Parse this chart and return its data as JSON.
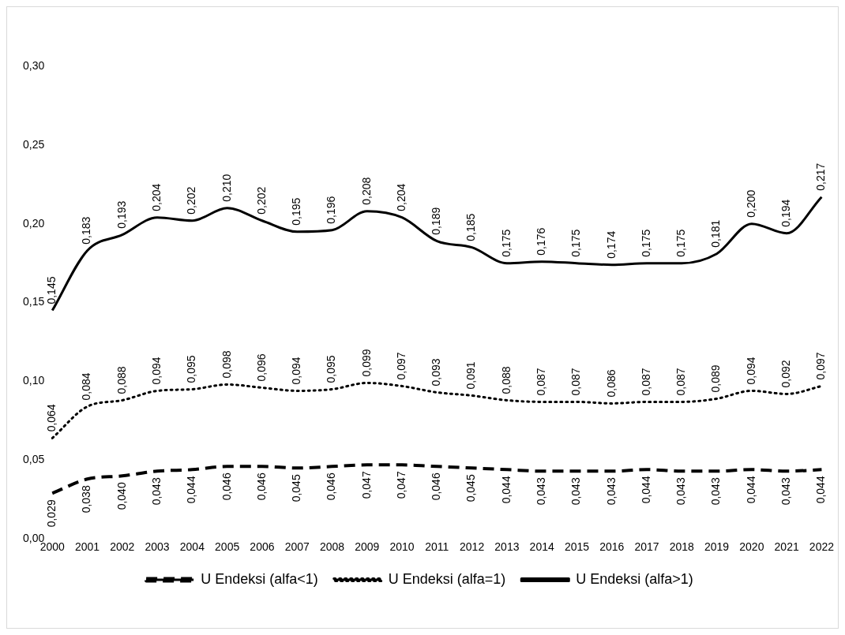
{
  "chart_data": {
    "type": "line",
    "categories": [
      "2000",
      "2001",
      "2002",
      "2003",
      "2004",
      "2005",
      "2006",
      "2007",
      "2008",
      "2009",
      "2010",
      "2011",
      "2012",
      "2013",
      "2014",
      "2015",
      "2016",
      "2017",
      "2018",
      "2019",
      "2020",
      "2021",
      "2022"
    ],
    "ylim": [
      0,
      0.3
    ],
    "yticks": [
      {
        "value": 0,
        "label": "0,00"
      },
      {
        "value": 0.05,
        "label": "0,05"
      },
      {
        "value": 0.1,
        "label": "0,10"
      },
      {
        "value": 0.15,
        "label": "0,15"
      },
      {
        "value": 0.2,
        "label": "0,20"
      },
      {
        "value": 0.25,
        "label": "0,25"
      },
      {
        "value": 0.3,
        "label": "0,30"
      }
    ],
    "grid": false,
    "legend": "bottom",
    "marker": "none",
    "series": [
      {
        "name": "U Endeksi (alfa<1)",
        "color": "#000000",
        "line_style": "dashed",
        "values": [
          0.029,
          0.038,
          0.04,
          0.043,
          0.044,
          0.046,
          0.046,
          0.045,
          0.046,
          0.047,
          0.047,
          0.046,
          0.045,
          0.044,
          0.043,
          0.043,
          0.043,
          0.044,
          0.043,
          0.043,
          0.044,
          0.043,
          0.044
        ],
        "value_labels": [
          "0,029",
          "0,038",
          "0,040",
          "0,043",
          "0,044",
          "0,046",
          "0,046",
          "0,045",
          "0,046",
          "0,047",
          "0,047",
          "0,046",
          "0,045",
          "0,044",
          "0,043",
          "0,043",
          "0,043",
          "0,044",
          "0,043",
          "0,043",
          "0,044",
          "0,043",
          "0,044"
        ]
      },
      {
        "name": "U Endeksi (alfa=1)",
        "color": "#000000",
        "line_style": "dotted",
        "values": [
          0.064,
          0.084,
          0.088,
          0.094,
          0.095,
          0.098,
          0.096,
          0.094,
          0.095,
          0.099,
          0.097,
          0.093,
          0.091,
          0.088,
          0.087,
          0.087,
          0.086,
          0.087,
          0.087,
          0.089,
          0.094,
          0.092,
          0.097
        ],
        "value_labels": [
          "0,064",
          "0,084",
          "0,088",
          "0,094",
          "0,095",
          "0,098",
          "0,096",
          "0,094",
          "0,095",
          "0,099",
          "0,097",
          "0,093",
          "0,091",
          "0,088",
          "0,087",
          "0,087",
          "0,086",
          "0,087",
          "0,087",
          "0,089",
          "0,094",
          "0,092",
          "0,097"
        ]
      },
      {
        "name": "U Endeksi (alfa>1)",
        "color": "#000000",
        "line_style": "solid",
        "values": [
          0.145,
          0.183,
          0.193,
          0.204,
          0.202,
          0.21,
          0.202,
          0.195,
          0.196,
          0.208,
          0.204,
          0.189,
          0.185,
          0.175,
          0.176,
          0.175,
          0.174,
          0.175,
          0.175,
          0.181,
          0.2,
          0.194,
          0.217
        ],
        "value_labels": [
          "0,145",
          "0,183",
          "0,193",
          "0,204",
          "0,202",
          "0,210",
          "0,202",
          "0,195",
          "0,196",
          "0,208",
          "0,204",
          "0,189",
          "0,185",
          "0,175",
          "0,176",
          "0,175",
          "0,174",
          "0,175",
          "0,175",
          "0,181",
          "0,200",
          "0,194",
          "0,217"
        ]
      }
    ]
  }
}
